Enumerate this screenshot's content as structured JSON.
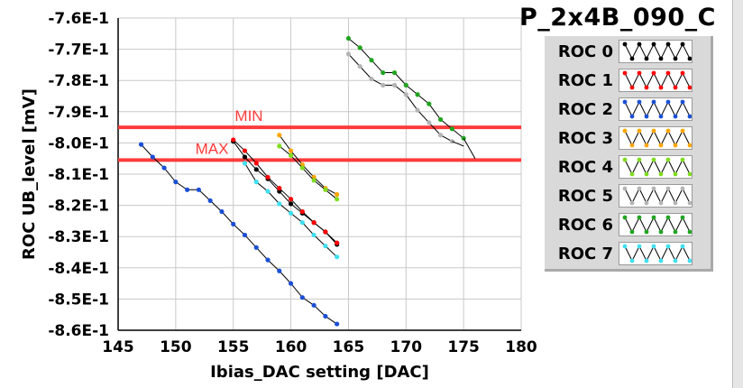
{
  "chart_data": {
    "type": "line",
    "title": "P_2x4B_090_C",
    "xlabel": "Ibias_DAC setting [DAC]",
    "ylabel": "ROC UB_level [mV]",
    "xlim": [
      145,
      180
    ],
    "ylim": [
      -0.86,
      -0.76
    ],
    "x_ticks": [
      145,
      150,
      155,
      160,
      165,
      170,
      175,
      180
    ],
    "y_ticks": [
      -0.76,
      -0.77,
      -0.78,
      -0.79,
      -0.8,
      -0.81,
      -0.82,
      -0.83,
      -0.84,
      -0.85,
      -0.86
    ],
    "y_tick_labels": [
      "-7.6E-1",
      "-7.7E-1",
      "-7.8E-1",
      "-7.9E-1",
      "-8.0E-1",
      "-8.1E-1",
      "-8.2E-1",
      "-8.3E-1",
      "-8.4E-1",
      "-8.5E-1",
      "-8.6E-1"
    ],
    "grid": true,
    "legend_position": "right",
    "reference_lines": [
      {
        "label": "MIN",
        "y": -0.795,
        "color": "#ff3b3b"
      },
      {
        "label": "MAX",
        "y": -0.8055,
        "color": "#ff3b3b"
      }
    ],
    "series": [
      {
        "name": "ROC 0",
        "color": "#000000",
        "x": [
          155,
          156,
          157,
          158,
          159,
          160,
          161,
          162,
          163,
          164
        ],
        "y": [
          -0.7995,
          -0.8045,
          -0.8085,
          -0.8115,
          -0.8155,
          -0.8195,
          -0.8225,
          -0.8255,
          -0.8285,
          -0.8325
        ]
      },
      {
        "name": "ROC 1",
        "color": "#ff0000",
        "x": [
          155,
          156,
          157,
          158,
          159,
          160,
          161,
          162,
          163,
          164
        ],
        "y": [
          -0.799,
          -0.8025,
          -0.8065,
          -0.811,
          -0.8145,
          -0.818,
          -0.822,
          -0.8255,
          -0.8285,
          -0.832
        ]
      },
      {
        "name": "ROC 2",
        "color": "#1a4fd6",
        "x": [
          147,
          148,
          149,
          150,
          151,
          152,
          153,
          154,
          155,
          156,
          157,
          158,
          159,
          160,
          161,
          162,
          163,
          164
        ],
        "y": [
          -0.8005,
          -0.8045,
          -0.808,
          -0.8125,
          -0.815,
          -0.815,
          -0.8185,
          -0.822,
          -0.826,
          -0.8295,
          -0.8335,
          -0.8375,
          -0.841,
          -0.845,
          -0.8495,
          -0.852,
          -0.8555,
          -0.858
        ]
      },
      {
        "name": "ROC 3",
        "color": "#ffa500",
        "x": [
          159,
          160,
          161,
          162,
          163,
          164
        ],
        "y": [
          -0.7975,
          -0.8025,
          -0.807,
          -0.811,
          -0.8145,
          -0.8165
        ]
      },
      {
        "name": "ROC 4",
        "color": "#7fdc1e",
        "x": [
          159,
          160,
          161,
          162,
          163,
          164
        ],
        "y": [
          -0.801,
          -0.804,
          -0.808,
          -0.812,
          -0.815,
          -0.818
        ]
      },
      {
        "name": "ROC 5",
        "color": "#b4b4b4",
        "x": [
          165,
          166,
          167,
          168,
          169,
          170,
          171,
          172,
          173,
          174
        ],
        "y": [
          -0.7715,
          -0.7755,
          -0.7795,
          -0.7815,
          -0.7815,
          -0.7845,
          -0.7895,
          -0.7935,
          -0.7975,
          -0.7995
        ]
      },
      {
        "name": "ROC 6",
        "color": "#1fa51f",
        "x": [
          165,
          166,
          167,
          168,
          169,
          170,
          171,
          172,
          173,
          174,
          175
        ],
        "y": [
          -0.7665,
          -0.7695,
          -0.7735,
          -0.7775,
          -0.7775,
          -0.7815,
          -0.7845,
          -0.7875,
          -0.7925,
          -0.7955,
          -0.7985
        ]
      },
      {
        "name": "ROC 7",
        "color": "#3ee0f0",
        "x": [
          156,
          157,
          158,
          159,
          160,
          161,
          162,
          163,
          164
        ],
        "y": [
          -0.8065,
          -0.8125,
          -0.8155,
          -0.8195,
          -0.8225,
          -0.8255,
          -0.8295,
          -0.833,
          -0.8365
        ]
      }
    ]
  }
}
